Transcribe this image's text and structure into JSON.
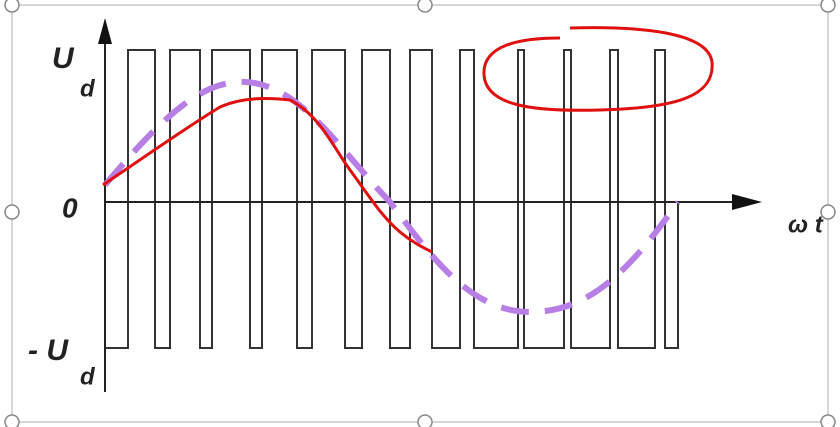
{
  "labels": {
    "ud": "U",
    "ud_sub": "d",
    "zero": "0",
    "neg_ud": "- U",
    "neg_ud_sub": "d",
    "axis": "ω t"
  }
}
